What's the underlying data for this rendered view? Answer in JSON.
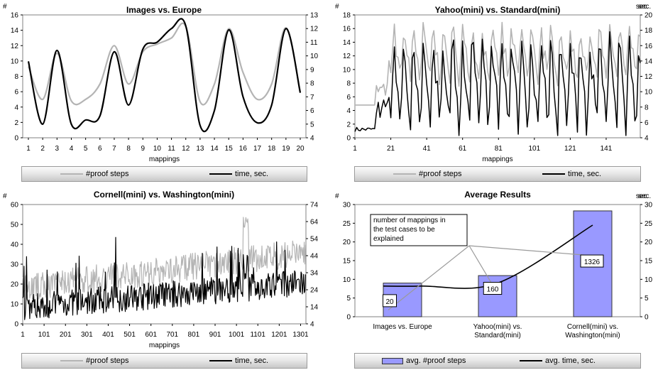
{
  "colors": {
    "proof": "#b4b4b4",
    "time": "#000000",
    "bar": "#9999ff"
  },
  "legend": {
    "proof": "#proof steps",
    "time": "time, sec.",
    "avg_proof": "avg. #proof steps",
    "avg_time": "avg. time, sec."
  },
  "chart_data": [
    {
      "type": "line",
      "title": "Images vs. Europe",
      "xlabel": "mappings",
      "ylabel_left": "#",
      "ylabel_right": "sec.",
      "ylim_left": [
        0,
        16
      ],
      "ylim_right": [
        4,
        13
      ],
      "x_ticks": [
        "1",
        "2",
        "3",
        "4",
        "5",
        "6",
        "7",
        "8",
        "9",
        "10",
        "11",
        "12",
        "13",
        "14",
        "15",
        "16",
        "17",
        "18",
        "19",
        "20"
      ],
      "series": [
        {
          "name": "#proof steps",
          "axis": "left",
          "values": [
            9.3,
            5.0,
            11.0,
            4.8,
            5.0,
            7.0,
            12.0,
            7.0,
            11.2,
            12.2,
            13.0,
            14.5,
            4.7,
            7.0,
            14.2,
            8.5,
            5.0,
            7.0,
            14.3,
            6.0
          ]
        },
        {
          "name": "time, sec.",
          "axis": "right",
          "values": [
            9.6,
            5.0,
            10.4,
            5.0,
            5.3,
            5.6,
            10.3,
            6.4,
            10.5,
            11.0,
            12.0,
            12.2,
            4.9,
            6.0,
            11.9,
            7.0,
            5.1,
            6.4,
            12.0,
            7.3
          ]
        }
      ]
    },
    {
      "type": "line",
      "title": "Yahoo(mini) vs. Standard(mini)",
      "xlabel": "mappings",
      "ylabel_left": "#",
      "ylabel_right": "sec.",
      "ylim_left": [
        0,
        18
      ],
      "ylim_right": [
        4,
        20
      ],
      "x_ticks": [
        "1",
        "21",
        "41",
        "61",
        "81",
        "101",
        "121",
        "141"
      ],
      "x_range": [
        1,
        160
      ],
      "series": [
        {
          "name": "#proof steps",
          "axis": "left",
          "approx_range": [
            4,
            17
          ]
        },
        {
          "name": "time, sec.",
          "axis": "right",
          "approx_range": [
            4.5,
            18
          ]
        }
      ]
    },
    {
      "type": "line",
      "title": "Cornell(mini) vs. Washington(mini)",
      "xlabel": "mappings",
      "ylabel_left": "#",
      "ylabel_right": "sec.",
      "ylim_left": [
        0,
        60
      ],
      "ylim_right": [
        4,
        74
      ],
      "x_ticks": [
        "1",
        "101",
        "201",
        "301",
        "401",
        "501",
        "601",
        "701",
        "801",
        "901",
        "1001",
        "1101",
        "1201",
        "1301"
      ],
      "x_range": [
        1,
        1326
      ],
      "series": [
        {
          "name": "#proof steps",
          "axis": "left",
          "approx_range": [
            10,
            60
          ]
        },
        {
          "name": "time, sec.",
          "axis": "right",
          "approx_range": [
            5,
            60
          ]
        }
      ]
    },
    {
      "type": "bar",
      "title": "Average Results",
      "ylabel_left": "#",
      "ylabel_right": "sec.",
      "ylim_left": [
        0,
        30
      ],
      "ylim_right": [
        0,
        30
      ],
      "categories": [
        "Images vs. Europe",
        "Yahoo(mini) vs. Standard(mini)",
        "Cornell(mini) vs. Washington(mini)"
      ],
      "category_lines": [
        [
          "Images vs. Europe"
        ],
        [
          "Yahoo(mini) vs.",
          "Standard(mini)"
        ],
        [
          "Cornell(mini) vs.",
          "Washington(mini)"
        ]
      ],
      "series": [
        {
          "name": "avg. #proof steps",
          "kind": "bar",
          "values": [
            9,
            11,
            28.3
          ]
        },
        {
          "name": "avg. time, sec.",
          "kind": "line",
          "values": [
            8.2,
            9,
            24.5
          ]
        }
      ],
      "data_labels": [
        "20",
        "160",
        "1326"
      ],
      "annotation": [
        "number of mappings in",
        "the test cases to be",
        "explained"
      ]
    }
  ]
}
